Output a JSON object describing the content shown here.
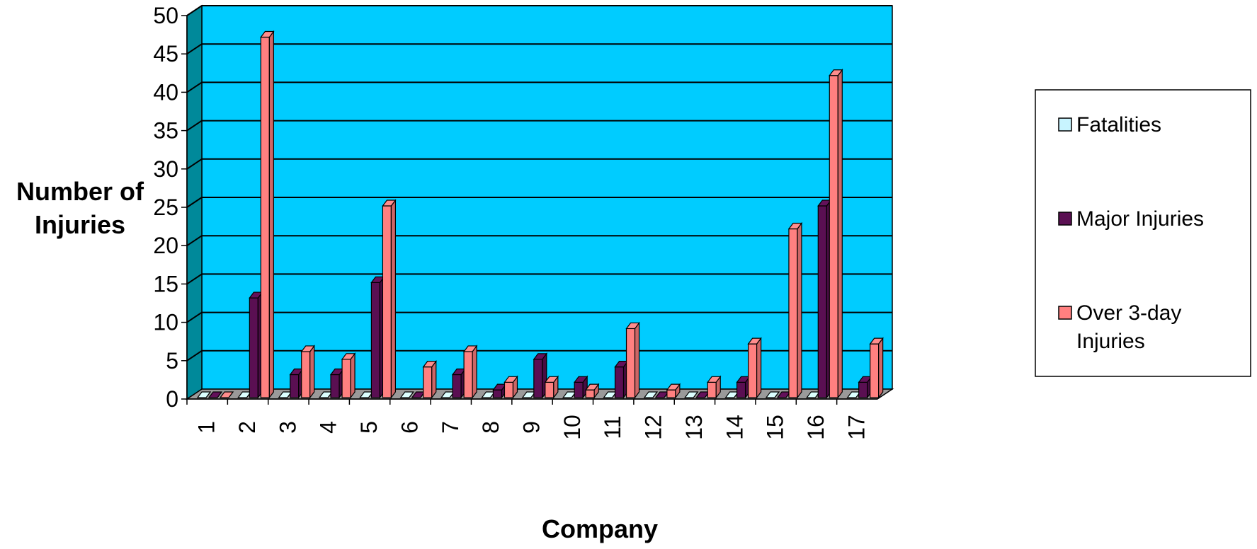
{
  "chart_data": {
    "type": "bar",
    "title": "",
    "xlabel": "Company",
    "ylabel_lines": [
      "Number of",
      "Injuries"
    ],
    "categories": [
      "1",
      "2",
      "3",
      "4",
      "5",
      "6",
      "7",
      "8",
      "9",
      "10",
      "11",
      "12",
      "13",
      "14",
      "15",
      "16",
      "17"
    ],
    "ylim": [
      0,
      50
    ],
    "yticks": [
      0,
      5,
      10,
      15,
      20,
      25,
      30,
      35,
      40,
      45,
      50
    ],
    "grid": true,
    "legend_position": "right",
    "series": [
      {
        "name": "Fatalities",
        "color": "#c8f4ff",
        "values": [
          0,
          0,
          0,
          0,
          0,
          0,
          0,
          0,
          0,
          0,
          0,
          0,
          0,
          0,
          0,
          0,
          0
        ]
      },
      {
        "name": "Major Injuries",
        "color": "#5a0f52",
        "values": [
          0,
          13,
          3,
          3,
          15,
          0,
          3,
          1,
          5,
          2,
          4,
          0,
          0,
          2,
          0,
          25,
          2
        ]
      },
      {
        "name": "Over 3-day Injuries",
        "legend_lines": [
          "Over 3-day",
          "Injuries"
        ],
        "color": "#ff8080",
        "values": [
          0,
          47,
          6,
          5,
          25,
          4,
          6,
          2,
          2,
          1,
          9,
          1,
          2,
          7,
          22,
          42,
          7
        ]
      }
    ],
    "plot_background": "#00ccff",
    "wall_side_color": "#00899a",
    "floor_color": "#9a9a9a",
    "gridline_color": "#000000"
  }
}
